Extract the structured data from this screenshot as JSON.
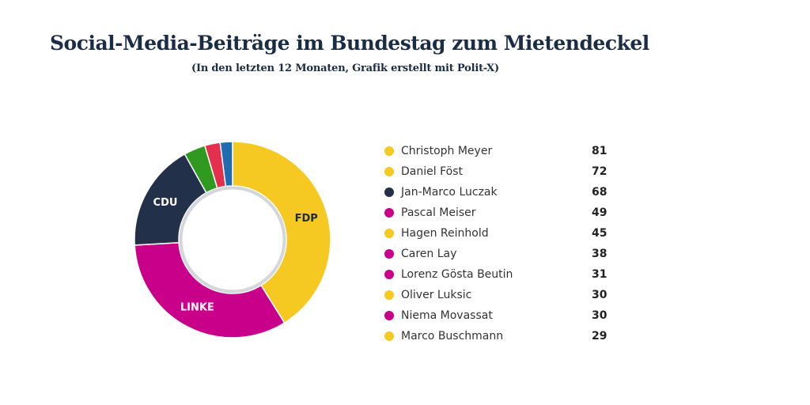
{
  "title": "Social-Media-Beiträge im Bundestag zum Mietendeckel",
  "subtitle": "(In den letzten 12 Monaten, Grafik erstellt mit Polit-X)",
  "chart_data": [
    {
      "type": "pie",
      "variant": "donut",
      "slices": [
        {
          "name": "FDP",
          "value": 40.5,
          "color": "#f5c922",
          "label_color": "#1b2d45"
        },
        {
          "name": "LINKE",
          "value": 32.5,
          "color": "#c9008a",
          "label_color": "#ffffff"
        },
        {
          "name": "CDU",
          "value": 17.5,
          "color": "#22304a",
          "label_color": "#ffffff"
        },
        {
          "name": "",
          "value": 3.5,
          "color": "#2f9a1f",
          "label_color": "#ffffff"
        },
        {
          "name": "",
          "value": 2.5,
          "color": "#e4304f",
          "label_color": "#ffffff"
        },
        {
          "name": "",
          "value": 2.0,
          "color": "#1f6cb0",
          "label_color": "#ffffff"
        }
      ]
    },
    {
      "type": "table",
      "rows": [
        {
          "name": "Christoph Meyer",
          "value": 81,
          "color": "#f5c922"
        },
        {
          "name": "Daniel Föst",
          "value": 72,
          "color": "#f5c922"
        },
        {
          "name": "Jan-Marco Luczak",
          "value": 68,
          "color": "#22304a"
        },
        {
          "name": "Pascal Meiser",
          "value": 49,
          "color": "#c9008a"
        },
        {
          "name": "Hagen Reinhold",
          "value": 45,
          "color": "#f5c922"
        },
        {
          "name": "Caren Lay",
          "value": 38,
          "color": "#c9008a"
        },
        {
          "name": "Lorenz Gösta Beutin",
          "value": 31,
          "color": "#c9008a"
        },
        {
          "name": "Oliver Luksic",
          "value": 30,
          "color": "#f5c922"
        },
        {
          "name": "Niema Movassat",
          "value": 30,
          "color": "#c9008a"
        },
        {
          "name": "Marco Buschmann",
          "value": 29,
          "color": "#f5c922"
        }
      ]
    }
  ]
}
